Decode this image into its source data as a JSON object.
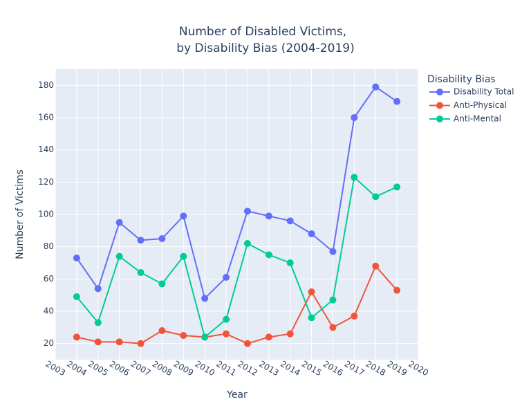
{
  "chart_data": {
    "type": "line",
    "title": "Number of Disabled Victims,",
    "subtitle": "by Disability Bias (2004-2019)",
    "xlabel": "Year",
    "ylabel": "Number of Victims",
    "legend_title": "Disability Bias",
    "legend_position": "right",
    "grid": true,
    "xlim": [
      2003,
      2020
    ],
    "ylim": [
      10,
      190
    ],
    "x_ticks": [
      2003,
      2004,
      2005,
      2006,
      2007,
      2008,
      2009,
      2010,
      2011,
      2012,
      2013,
      2014,
      2015,
      2016,
      2017,
      2018,
      2019,
      2020
    ],
    "y_ticks": [
      20,
      40,
      60,
      80,
      100,
      120,
      140,
      160,
      180
    ],
    "x": [
      2004,
      2005,
      2006,
      2007,
      2008,
      2009,
      2010,
      2011,
      2012,
      2013,
      2014,
      2015,
      2016,
      2017,
      2018,
      2019
    ],
    "series": [
      {
        "name": "Disability Total",
        "color": "#636efa",
        "values": [
          73,
          54,
          95,
          84,
          85,
          99,
          48,
          61,
          102,
          99,
          96,
          88,
          77,
          160,
          179,
          170
        ]
      },
      {
        "name": "Anti-Physical",
        "color": "#ef553b",
        "values": [
          24,
          21,
          21,
          20,
          28,
          25,
          24,
          26,
          20,
          24,
          26,
          52,
          30,
          37,
          68,
          53
        ]
      },
      {
        "name": "Anti-Mental",
        "color": "#00cc96",
        "values": [
          49,
          33,
          74,
          64,
          57,
          74,
          24,
          35,
          82,
          75,
          70,
          36,
          47,
          123,
          111,
          117
        ]
      }
    ],
    "colors": {
      "plot_background": "#e5ecf6",
      "grid": "#ffffff",
      "text": "#2a3f5f"
    }
  }
}
